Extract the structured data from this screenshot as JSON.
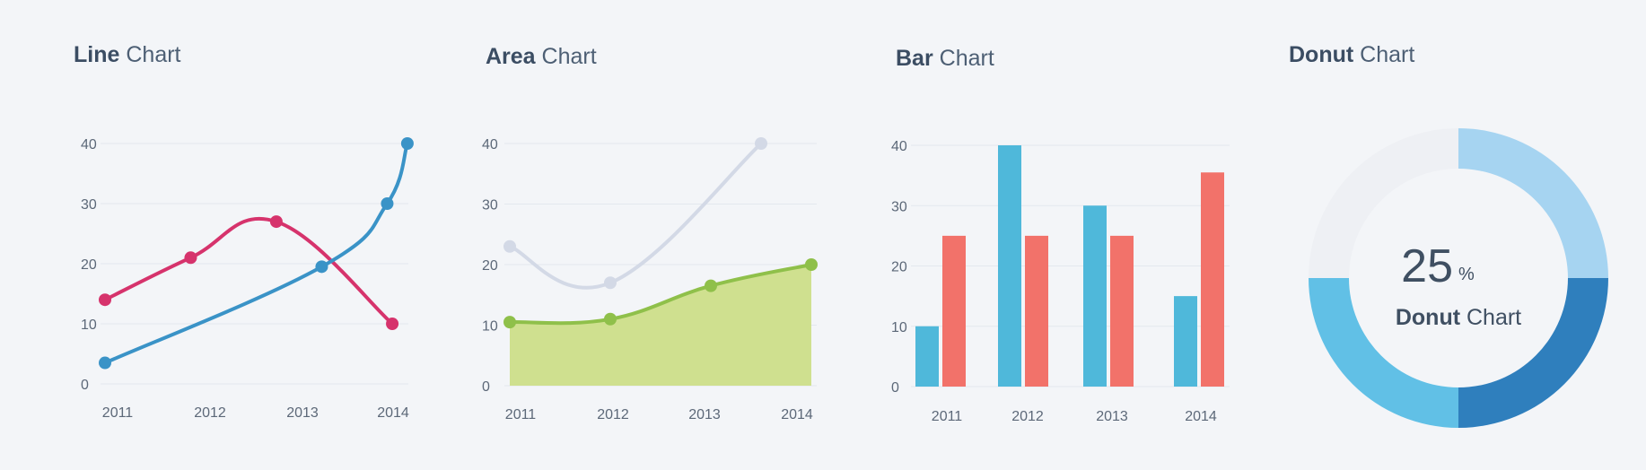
{
  "chart_data": [
    {
      "type": "line",
      "title_strong": "Line",
      "title_light": "Chart",
      "categories": [
        "2011",
        "2012",
        "2013",
        "2014"
      ],
      "y_ticks": [
        "0",
        "10",
        "20",
        "30",
        "40"
      ],
      "ylim": [
        0,
        40
      ],
      "grid": true,
      "series": [
        {
          "color": "#d6336c",
          "points": [
            [
              2011.0,
              14
            ],
            [
              2011.85,
              21
            ],
            [
              2012.7,
              27
            ],
            [
              2013.85,
              10
            ]
          ]
        },
        {
          "color": "#3a93c7",
          "points": [
            [
              2011.0,
              3.5
            ],
            [
              2013.15,
              19.5
            ],
            [
              2013.8,
              30
            ],
            [
              2014.0,
              40
            ]
          ]
        }
      ]
    },
    {
      "type": "area",
      "title_strong": "Area",
      "title_light": "Chart",
      "categories": [
        "2011",
        "2012",
        "2013",
        "2014"
      ],
      "y_ticks": [
        "0",
        "10",
        "20",
        "30",
        "40"
      ],
      "ylim": [
        0,
        40
      ],
      "grid": true,
      "series": [
        {
          "color": "#d3d9e6",
          "fill": false,
          "points": [
            [
              2011.0,
              23
            ],
            [
              2012.0,
              17
            ],
            [
              2013.5,
              40
            ]
          ]
        },
        {
          "color": "#8fc04a",
          "fill": true,
          "fill_color": "#cfe08f",
          "points": [
            [
              2011.0,
              10.5
            ],
            [
              2012.0,
              11
            ],
            [
              2013.0,
              16.5
            ],
            [
              2014.0,
              20
            ]
          ]
        }
      ]
    },
    {
      "type": "bar",
      "title_strong": "Bar",
      "title_light": "Chart",
      "categories": [
        "2011",
        "2012",
        "2013",
        "2014"
      ],
      "y_ticks": [
        "0",
        "10",
        "20",
        "30",
        "40"
      ],
      "ylim": [
        0,
        40
      ],
      "grid": true,
      "series": [
        {
          "color": "#4fb8da",
          "values": [
            10,
            40,
            30,
            15
          ]
        },
        {
          "color": "#f2726a",
          "values": [
            25,
            25,
            25,
            35.5
          ]
        }
      ]
    },
    {
      "type": "pie",
      "variant": "donut",
      "title_strong": "Donut",
      "title_light": "Chart",
      "center_value": "25",
      "center_unit": "%",
      "center_label_strong": "Donut",
      "center_label_light": "Chart",
      "slices": [
        {
          "value": 25,
          "color": "#a6d4f1"
        },
        {
          "value": 25,
          "color": "#2f7fbd"
        },
        {
          "value": 25,
          "color": "#61c0e6"
        },
        {
          "value": 25,
          "color": "#eef0f4"
        }
      ]
    }
  ]
}
